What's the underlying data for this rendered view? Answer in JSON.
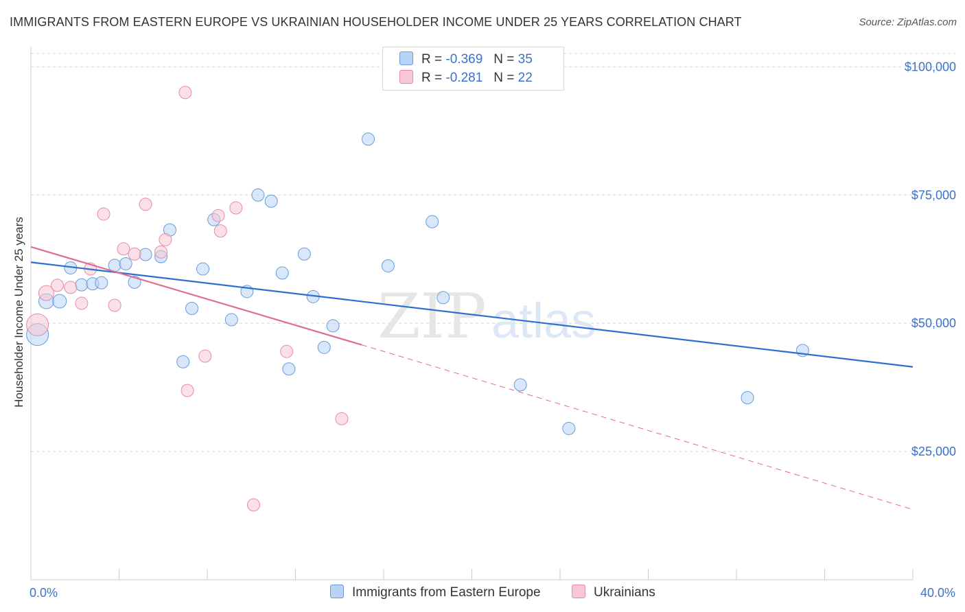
{
  "header": {
    "title": "IMMIGRANTS FROM EASTERN EUROPE VS UKRAINIAN HOUSEHOLDER INCOME UNDER 25 YEARS CORRELATION CHART",
    "source": "Source: ZipAtlas.com"
  },
  "watermark": {
    "zip": "ZIP",
    "atlas": "atlas"
  },
  "legend": {
    "r_label": "R =",
    "n_label": "N =",
    "series1": {
      "r": "-0.369",
      "n": "35"
    },
    "series2": {
      "r": "-0.281",
      "n": "22"
    }
  },
  "colors": {
    "blue_fill": "#b8d3f5",
    "blue_stroke": "#6a9ad8",
    "blue_line": "#2c6fd1",
    "pink_fill": "#f8c6d6",
    "pink_stroke": "#e58aa8",
    "pink_line": "#e06a93",
    "axis_text": "#3b72c9",
    "grid": "#d5d5d5"
  },
  "chart_data": {
    "type": "scatter",
    "title": "IMMIGRANTS FROM EASTERN EUROPE VS UKRAINIAN HOUSEHOLDER INCOME UNDER 25 YEARS CORRELATION CHART",
    "xlabel": "",
    "ylabel": "Householder Income Under 25 years",
    "xlim": [
      0,
      40
    ],
    "ylim": [
      0,
      105000
    ],
    "x_tick_labels": [
      "0.0%",
      "40.0%"
    ],
    "y_ticks": [
      25000,
      50000,
      75000,
      100000
    ],
    "y_tick_labels": [
      "$25,000",
      "$50,000",
      "$75,000",
      "$100,000"
    ],
    "series": [
      {
        "name": "Immigrants from Eastern Europe",
        "color": "blue",
        "r": -0.369,
        "n": 35,
        "points": [
          [
            0.3,
            47800,
            16
          ],
          [
            0.7,
            54300,
            11
          ],
          [
            1.3,
            54300,
            10
          ],
          [
            1.8,
            60800,
            9
          ],
          [
            2.3,
            57500,
            9
          ],
          [
            2.8,
            57700,
            9
          ],
          [
            3.2,
            57900,
            9
          ],
          [
            3.8,
            61300,
            9
          ],
          [
            4.3,
            61600,
            9
          ],
          [
            4.7,
            58000,
            9
          ],
          [
            5.2,
            63400,
            9
          ],
          [
            5.9,
            63000,
            9
          ],
          [
            6.3,
            68200,
            9
          ],
          [
            6.9,
            42500,
            9
          ],
          [
            7.3,
            52900,
            9
          ],
          [
            7.8,
            60600,
            9
          ],
          [
            8.3,
            70200,
            9
          ],
          [
            9.1,
            50700,
            9
          ],
          [
            9.8,
            56200,
            9
          ],
          [
            10.3,
            75000,
            9
          ],
          [
            10.9,
            73800,
            9
          ],
          [
            11.4,
            59800,
            9
          ],
          [
            11.7,
            41100,
            9
          ],
          [
            12.4,
            63500,
            9
          ],
          [
            12.8,
            55200,
            9
          ],
          [
            13.3,
            45300,
            9
          ],
          [
            13.7,
            49500,
            9
          ],
          [
            15.3,
            85900,
            9
          ],
          [
            16.2,
            61200,
            9
          ],
          [
            18.2,
            69800,
            9
          ],
          [
            18.7,
            55000,
            9
          ],
          [
            22.2,
            38000,
            9
          ],
          [
            24.4,
            29500,
            9
          ],
          [
            32.5,
            35500,
            9
          ],
          [
            35.0,
            44700,
            9
          ]
        ],
        "trend": {
          "x": [
            0,
            40
          ],
          "y": [
            61900,
            41500
          ]
        }
      },
      {
        "name": "Ukrainians",
        "color": "pink",
        "r": -0.281,
        "n": 22,
        "points": [
          [
            0.3,
            49700,
            16
          ],
          [
            0.7,
            55900,
            11
          ],
          [
            1.2,
            57400,
            9
          ],
          [
            1.8,
            57000,
            9
          ],
          [
            2.3,
            53900,
            9
          ],
          [
            2.7,
            60600,
            9
          ],
          [
            3.3,
            71300,
            9
          ],
          [
            3.8,
            53500,
            9
          ],
          [
            4.2,
            64500,
            9
          ],
          [
            4.7,
            63500,
            9
          ],
          [
            5.2,
            73200,
            9
          ],
          [
            5.9,
            63900,
            9
          ],
          [
            6.1,
            66300,
            9
          ],
          [
            7.0,
            95000,
            9
          ],
          [
            7.1,
            36900,
            9
          ],
          [
            7.9,
            43600,
            9
          ],
          [
            8.5,
            71000,
            9
          ],
          [
            8.6,
            68000,
            9
          ],
          [
            9.3,
            72500,
            9
          ],
          [
            10.1,
            14600,
            9
          ],
          [
            11.6,
            44500,
            9
          ],
          [
            14.1,
            31400,
            9
          ]
        ],
        "trend": {
          "x": [
            0,
            15
          ],
          "y": [
            64900,
            45800
          ]
        },
        "trend_extension": {
          "x": [
            15,
            40
          ],
          "y": [
            45800,
            13700
          ]
        }
      }
    ]
  },
  "bottom_legend": {
    "item1": "Immigrants from Eastern Europe",
    "item2": "Ukrainians"
  }
}
